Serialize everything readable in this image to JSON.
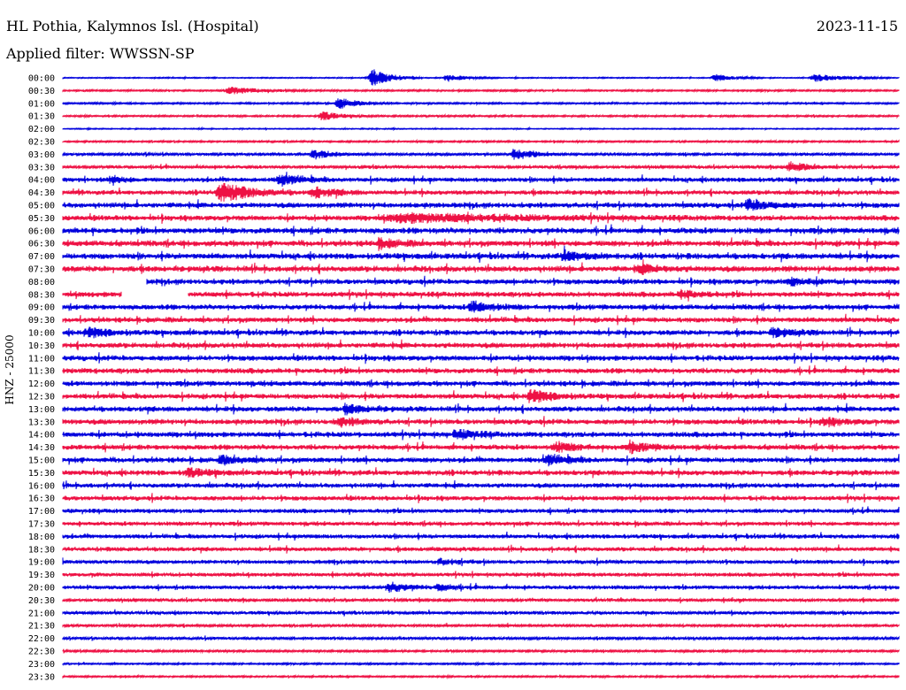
{
  "header": {
    "station": "HL Pothia, Kalymnos Isl. (Hospital)",
    "date": "2023-11-15",
    "filter": "Applied filter: WWSSN-SP"
  },
  "chart_data": {
    "type": "line",
    "title": "HL Pothia, Kalymnos Isl. (Hospital)",
    "subtitle": "Applied filter: WWSSN-SP",
    "date": "2023-11-15",
    "ylabel": "HNZ - 25000",
    "xlabel": "",
    "grid": false,
    "colors": {
      "even_rows": "#0000dd",
      "odd_rows": "#ee1144"
    },
    "row_labels": [
      "00:00",
      "00:30",
      "01:00",
      "01:30",
      "02:00",
      "02:30",
      "03:00",
      "03:30",
      "04:00",
      "04:30",
      "05:00",
      "05:30",
      "06:00",
      "06:30",
      "07:00",
      "07:30",
      "08:00",
      "08:30",
      "09:00",
      "09:30",
      "10:00",
      "10:30",
      "11:00",
      "11:30",
      "12:00",
      "12:30",
      "13:00",
      "13:30",
      "14:00",
      "14:30",
      "15:00",
      "15:30",
      "16:00",
      "16:30",
      "17:00",
      "17:30",
      "18:00",
      "18:30",
      "19:00",
      "19:30",
      "20:00",
      "20:30",
      "21:00",
      "21:30",
      "22:00",
      "22:30",
      "23:00",
      "23:30"
    ],
    "noise_level": [
      0.5,
      0.8,
      0.8,
      0.8,
      0.5,
      0.8,
      1.2,
      1.5,
      2.2,
      2.2,
      2.5,
      2.5,
      2.8,
      2.8,
      2.8,
      2.8,
      2.5,
      2.5,
      2.5,
      2.5,
      2.5,
      2.5,
      2.5,
      2.5,
      2.5,
      2.5,
      2.5,
      2.5,
      2.5,
      2.5,
      2.5,
      2.5,
      2.2,
      2.2,
      2.0,
      2.0,
      2.0,
      2.0,
      1.8,
      1.8,
      1.8,
      1.5,
      1.5,
      1.2,
      1.2,
      1.0,
      0.8,
      0.8
    ],
    "events": [
      {
        "row": "00:00",
        "x": 0.37,
        "amp": 10,
        "width": 0.02
      },
      {
        "row": "00:00",
        "x": 0.46,
        "amp": 4,
        "width": 0.02
      },
      {
        "row": "00:00",
        "x": 0.78,
        "amp": 4,
        "width": 0.02
      },
      {
        "row": "00:00",
        "x": 0.9,
        "amp": 4,
        "width": 0.03
      },
      {
        "row": "00:30",
        "x": 0.2,
        "amp": 4,
        "width": 0.03
      },
      {
        "row": "01:00",
        "x": 0.33,
        "amp": 6,
        "width": 0.02
      },
      {
        "row": "01:30",
        "x": 0.31,
        "amp": 5,
        "width": 0.02
      },
      {
        "row": "03:00",
        "x": 0.3,
        "amp": 5,
        "width": 0.02
      },
      {
        "row": "03:00",
        "x": 0.54,
        "amp": 6,
        "width": 0.02
      },
      {
        "row": "03:30",
        "x": 0.87,
        "amp": 5,
        "width": 0.02
      },
      {
        "row": "04:00",
        "x": 0.06,
        "amp": 5,
        "width": 0.01
      },
      {
        "row": "04:00",
        "x": 0.26,
        "amp": 6,
        "width": 0.02
      },
      {
        "row": "04:30",
        "x": 0.19,
        "amp": 10,
        "width": 0.03
      },
      {
        "row": "04:30",
        "x": 0.3,
        "amp": 6,
        "width": 0.02
      },
      {
        "row": "05:00",
        "x": 0.82,
        "amp": 6,
        "width": 0.02
      },
      {
        "row": "05:30",
        "x": 0.41,
        "amp": 4,
        "width": 0.12
      },
      {
        "row": "06:30",
        "x": 0.38,
        "amp": 4,
        "width": 0.02
      },
      {
        "row": "07:00",
        "x": 0.6,
        "amp": 5,
        "width": 0.02
      },
      {
        "row": "07:30",
        "x": 0.69,
        "amp": 4,
        "width": 0.02
      },
      {
        "row": "08:00",
        "x": 0.87,
        "amp": 4,
        "width": 0.02
      },
      {
        "row": "08:30",
        "x": 0.74,
        "amp": 4,
        "width": 0.02
      },
      {
        "row": "09:00",
        "x": 0.49,
        "amp": 6,
        "width": 0.02
      },
      {
        "row": "10:00",
        "x": 0.03,
        "amp": 5,
        "width": 0.02
      },
      {
        "row": "10:00",
        "x": 0.85,
        "amp": 4,
        "width": 0.02
      },
      {
        "row": "12:30",
        "x": 0.56,
        "amp": 7,
        "width": 0.02
      },
      {
        "row": "13:00",
        "x": 0.34,
        "amp": 4,
        "width": 0.02
      },
      {
        "row": "13:30",
        "x": 0.33,
        "amp": 4,
        "width": 0.02
      },
      {
        "row": "13:30",
        "x": 0.91,
        "amp": 4,
        "width": 0.02
      },
      {
        "row": "14:00",
        "x": 0.47,
        "amp": 5,
        "width": 0.02
      },
      {
        "row": "14:30",
        "x": 0.59,
        "amp": 5,
        "width": 0.02
      },
      {
        "row": "14:30",
        "x": 0.68,
        "amp": 5,
        "width": 0.02
      },
      {
        "row": "15:00",
        "x": 0.19,
        "amp": 4,
        "width": 0.02
      },
      {
        "row": "15:00",
        "x": 0.58,
        "amp": 5,
        "width": 0.02
      },
      {
        "row": "15:30",
        "x": 0.15,
        "amp": 4,
        "width": 0.02
      },
      {
        "row": "19:00",
        "x": 0.45,
        "amp": 3,
        "width": 0.02
      },
      {
        "row": "20:00",
        "x": 0.39,
        "amp": 5,
        "width": 0.02
      },
      {
        "row": "20:00",
        "x": 0.45,
        "amp": 3,
        "width": 0.02
      }
    ],
    "gaps": [
      {
        "row": "08:00",
        "start": 0,
        "end": 0.1
      },
      {
        "row": "08:30",
        "start": 0.07,
        "end": 0.15
      }
    ]
  }
}
